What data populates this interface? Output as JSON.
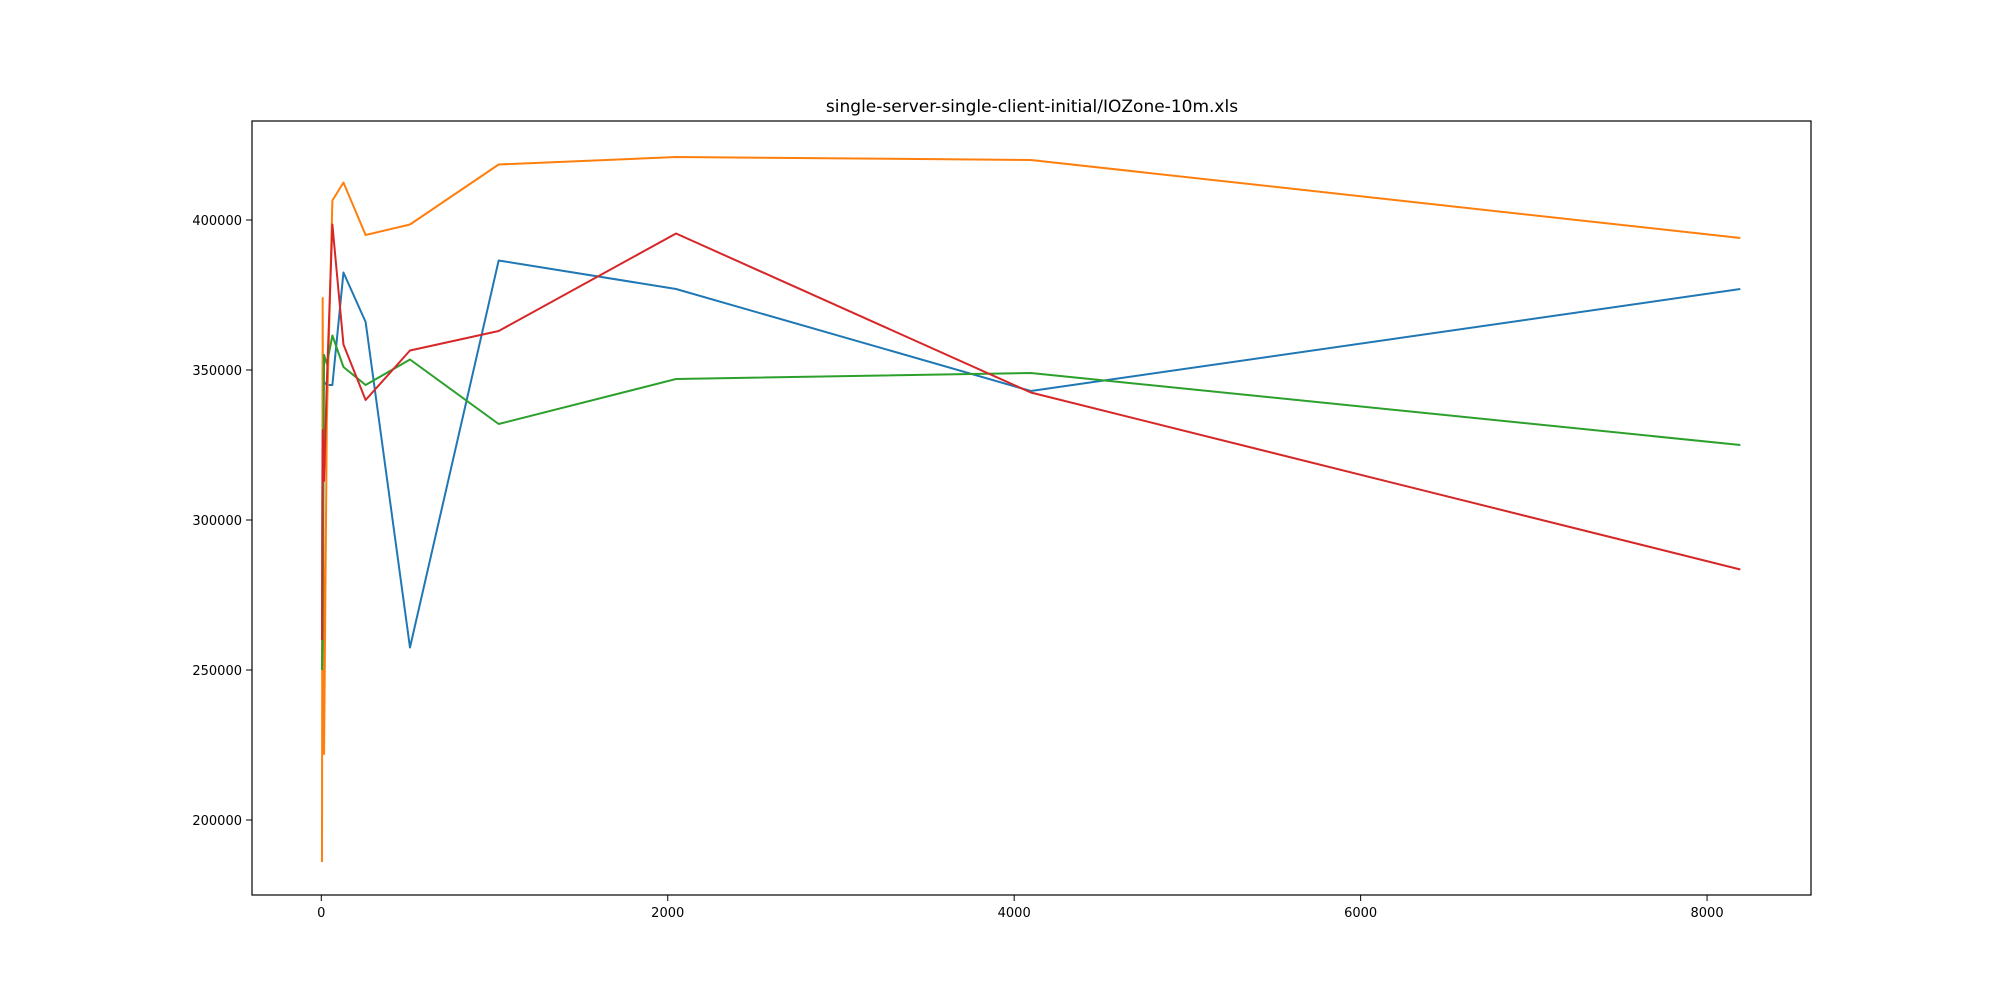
{
  "chart_data": {
    "type": "line",
    "title": "single-server-single-client-initial/IOZone-10m.xls",
    "xlabel": "",
    "ylabel": "",
    "xlim": [
      -400,
      8600
    ],
    "ylim": [
      175000,
      433000
    ],
    "grid": false,
    "legend": "none",
    "xticks": [
      0,
      2000,
      4000,
      6000,
      8000
    ],
    "yticks": [
      200000,
      250000,
      300000,
      350000,
      400000
    ],
    "series": [
      {
        "color": "#1f77b4",
        "x": [
          4,
          8,
          16,
          32,
          64,
          128,
          256,
          512,
          1024,
          2048,
          4096,
          8192
        ],
        "y": [
          250000,
          350000,
          346000,
          345000,
          345000,
          382500,
          366000,
          257500,
          386500,
          377000,
          343000,
          377000
        ]
      },
      {
        "color": "#ff7f0e",
        "x": [
          4,
          8,
          16,
          32,
          64,
          128,
          256,
          512,
          1024,
          2048,
          4096,
          8192
        ],
        "y": [
          186000,
          374000,
          222000,
          333000,
          406500,
          412500,
          395000,
          398500,
          418500,
          421000,
          420000,
          394000
        ]
      },
      {
        "color": "#2ca02c",
        "x": [
          4,
          8,
          16,
          32,
          64,
          128,
          256,
          512,
          1024,
          2048,
          4096,
          8192
        ],
        "y": [
          250000,
          260000,
          355000,
          352000,
          361500,
          351000,
          345000,
          353500,
          332000,
          347000,
          349000,
          325000
        ]
      },
      {
        "color": "#d62728",
        "x": [
          4,
          8,
          16,
          32,
          64,
          128,
          256,
          512,
          1024,
          2048,
          4096,
          8192
        ],
        "y": [
          260000,
          330000,
          313000,
          346000,
          398500,
          358500,
          340000,
          356500,
          363000,
          395500,
          342500,
          283500
        ]
      }
    ]
  }
}
